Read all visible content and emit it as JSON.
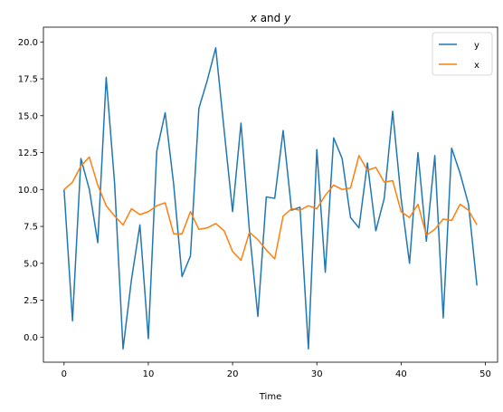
{
  "chart_data": {
    "type": "line",
    "title": "x and y",
    "title_parts": {
      "a": "x",
      "mid": " and ",
      "b": "y"
    },
    "xlabel": "Time",
    "ylabel": "",
    "xlim": [
      -2.45,
      51.45
    ],
    "ylim": [
      -1.7,
      21.0
    ],
    "x_ticks": [
      0,
      10,
      20,
      30,
      40,
      50
    ],
    "y_ticks": [
      0.0,
      2.5,
      5.0,
      7.5,
      10.0,
      12.5,
      15.0,
      17.5,
      20.0
    ],
    "y_tick_labels": [
      "0.0",
      "2.5",
      "5.0",
      "7.5",
      "10.0",
      "12.5",
      "15.0",
      "17.5",
      "20.0"
    ],
    "legend_position": "top-right",
    "grid": false,
    "x": [
      0,
      1,
      2,
      3,
      4,
      5,
      6,
      7,
      8,
      9,
      10,
      11,
      12,
      13,
      14,
      15,
      16,
      17,
      18,
      19,
      20,
      21,
      22,
      23,
      24,
      25,
      26,
      27,
      28,
      29,
      30,
      31,
      32,
      33,
      34,
      35,
      36,
      37,
      38,
      39,
      40,
      41,
      42,
      43,
      44,
      45,
      46,
      47,
      48,
      49
    ],
    "series": [
      {
        "name": "y",
        "color": "#1f77b4",
        "values": [
          10.0,
          1.1,
          12.1,
          10.0,
          6.4,
          17.6,
          10.4,
          -0.8,
          3.9,
          7.6,
          -0.1,
          12.6,
          15.2,
          10.4,
          4.1,
          5.5,
          15.5,
          17.4,
          19.6,
          14.0,
          8.5,
          14.5,
          7.2,
          1.4,
          9.5,
          9.4,
          14.0,
          8.6,
          8.8,
          -0.8,
          12.7,
          4.4,
          13.5,
          12.1,
          8.1,
          7.4,
          11.8,
          7.2,
          9.4,
          15.3,
          9.4,
          5.0,
          12.5,
          6.5,
          12.3,
          1.3,
          12.8,
          11.1,
          9.0,
          3.5
        ]
      },
      {
        "name": "x",
        "color": "#ff7f0e",
        "values": [
          10.0,
          10.5,
          11.6,
          12.2,
          10.3,
          8.9,
          8.2,
          7.6,
          8.7,
          8.3,
          8.5,
          8.9,
          9.1,
          7.0,
          7.0,
          8.5,
          7.3,
          7.4,
          7.7,
          7.2,
          5.8,
          5.2,
          7.1,
          6.6,
          5.9,
          5.3,
          8.2,
          8.7,
          8.6,
          8.9,
          8.7,
          9.6,
          10.3,
          10.0,
          10.1,
          12.3,
          11.3,
          11.5,
          10.5,
          10.6,
          8.5,
          8.1,
          9.0,
          6.9,
          7.3,
          8.0,
          7.9,
          9.0,
          8.6,
          7.6
        ]
      }
    ]
  }
}
